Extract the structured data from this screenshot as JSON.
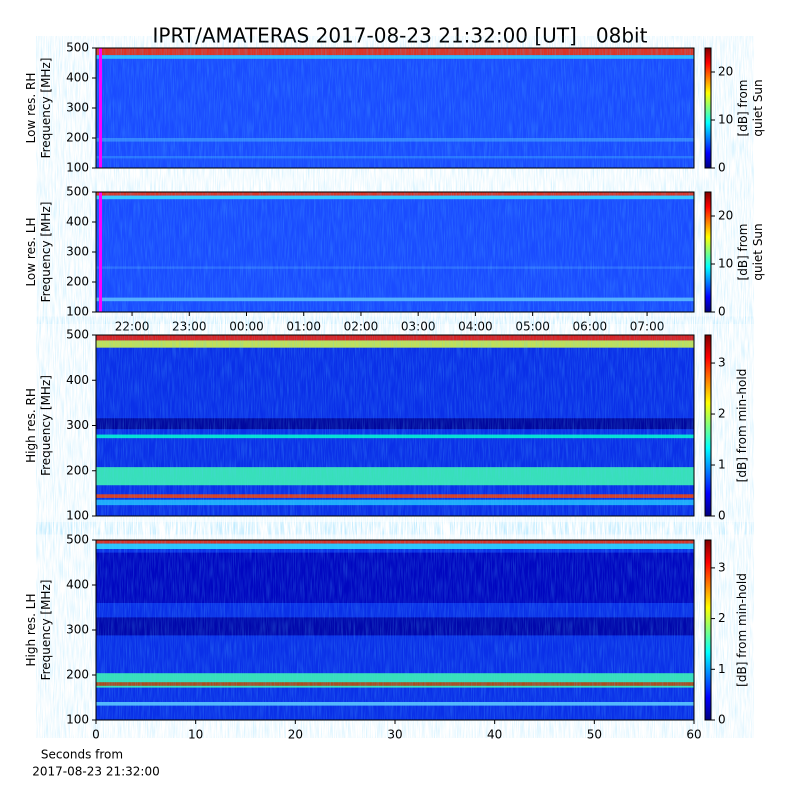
{
  "chart_data": [
    {
      "type": "heatmap",
      "title": "IPRT/AMATERAS 2017-08-23 21:32:00 [UT]   08bit",
      "ylabel": [
        "Low res. RH",
        "Frequency [MHz]"
      ],
      "xlim": [
        21.37,
        31.82
      ],
      "ylim": [
        100,
        500
      ],
      "yticks": [
        100,
        200,
        300,
        400,
        500
      ],
      "colorbar": {
        "label": [
          "[dB] from",
          "quiet Sun"
        ],
        "lim": [
          0,
          25
        ],
        "ticks": [
          0,
          10,
          20
        ]
      }
    },
    {
      "type": "heatmap",
      "ylabel": [
        "Low res. LH",
        "Frequency [MHz]"
      ],
      "xlim": [
        21.37,
        31.82
      ],
      "xticks": [
        {
          "value": 22,
          "label": "22:00"
        },
        {
          "value": 23,
          "label": "23:00"
        },
        {
          "value": 24,
          "label": "00:00"
        },
        {
          "value": 25,
          "label": "01:00"
        },
        {
          "value": 26,
          "label": "02:00"
        },
        {
          "value": 27,
          "label": "03:00"
        },
        {
          "value": 28,
          "label": "04:00"
        },
        {
          "value": 29,
          "label": "05:00"
        },
        {
          "value": 30,
          "label": "06:00"
        },
        {
          "value": 31,
          "label": "07:00"
        }
      ],
      "ylim": [
        100,
        500
      ],
      "yticks": [
        100,
        200,
        300,
        400,
        500
      ],
      "colorbar": {
        "label": [
          "[dB] from",
          "quiet Sun"
        ],
        "lim": [
          0,
          25
        ],
        "ticks": [
          0,
          10,
          20
        ]
      }
    },
    {
      "type": "heatmap",
      "ylabel": [
        "High res. RH",
        "Frequency [MHz]"
      ],
      "xlim": [
        0,
        60
      ],
      "ylim": [
        100,
        500
      ],
      "yticks": [
        100,
        200,
        300,
        400,
        500
      ],
      "colorbar": {
        "label": [
          "[dB] from min-hold"
        ],
        "lim": [
          0,
          3.55
        ],
        "ticks": [
          0,
          1,
          2,
          3
        ]
      }
    },
    {
      "type": "heatmap",
      "ylabel": [
        "High res. LH",
        "Frequency [MHz]"
      ],
      "xlabel": [
        "Seconds from",
        "2017-08-23 21:32:00"
      ],
      "xlim": [
        0,
        60
      ],
      "xticks": [
        0,
        10,
        20,
        30,
        40,
        50,
        60
      ],
      "ylim": [
        100,
        500
      ],
      "yticks": [
        100,
        200,
        300,
        400,
        500
      ],
      "colorbar": {
        "label": [
          "[dB] from min-hold"
        ],
        "lim": [
          0,
          3.55
        ],
        "ticks": [
          0,
          1,
          2,
          3
        ]
      }
    }
  ]
}
